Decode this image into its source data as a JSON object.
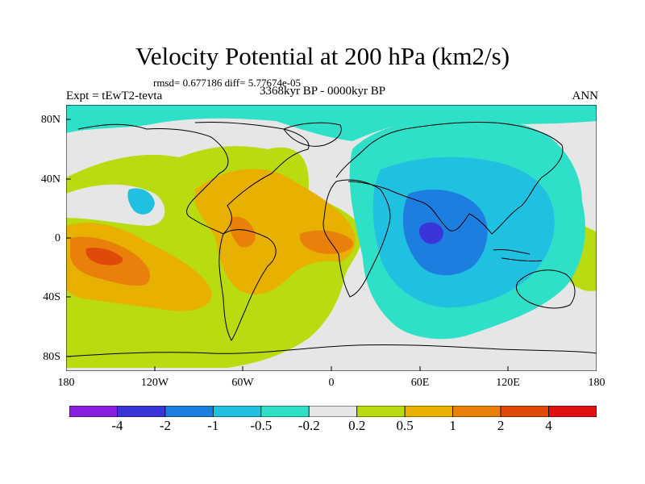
{
  "title": "Velocity Potential at 200 hPa (km2/s)",
  "stats_text": "rmsd= 0.677186  diff= 5.77674e-05",
  "experiment_text": "Expt = tEwT2-tevta",
  "period_text": "3368kyr BP - 0000kyr BP",
  "season_text": "ANN",
  "lat_ticks": [
    "80N",
    "40N",
    "0",
    "40S",
    "80S"
  ],
  "lon_ticks": [
    "180",
    "120W",
    "60W",
    "0",
    "60E",
    "120E",
    "180"
  ],
  "colorbar": {
    "labels": [
      "-4",
      "-2",
      "-1",
      "-0.5",
      "-0.2",
      "0.2",
      "0.5",
      "1",
      "2",
      "4"
    ],
    "colors": [
      "#8a1fe0",
      "#3b35d9",
      "#1c7fe0",
      "#20c0e0",
      "#2fe0c8",
      "#e6e6e6",
      "#b8dc10",
      "#e8b000",
      "#e8800a",
      "#e04a08",
      "#e01010"
    ]
  }
}
